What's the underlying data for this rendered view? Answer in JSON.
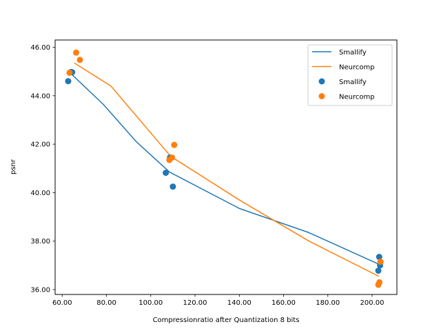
{
  "chart_data": {
    "type": "scatter",
    "xlabel": "Compressionratio after Quantization 8 bits",
    "ylabel": "psnr",
    "xlim": [
      56.8,
      211.2
    ],
    "ylim": [
      35.8,
      46.3
    ],
    "xticks": [
      60,
      80,
      100,
      120,
      140,
      160,
      180,
      200
    ],
    "xtick_labels": [
      "60.00",
      "80.00",
      "100.00",
      "120.00",
      "140.00",
      "160.00",
      "180.00",
      "200.00"
    ],
    "yticks": [
      36,
      38,
      40,
      42,
      44,
      46
    ],
    "ytick_labels": [
      "36.00",
      "38.00",
      "40.00",
      "42.00",
      "44.00",
      "46.00"
    ],
    "grid": false,
    "legend_position": "upper right",
    "colors": {
      "Smallify": "#1f77b4",
      "Neurcomp": "#ff7f0e"
    },
    "lines": [
      {
        "name": "Smallify",
        "color": "#1f77b4",
        "x": [
          63.5,
          78.5,
          93.5,
          108.5,
          140,
          171.5,
          203
        ],
        "y": [
          44.95,
          43.65,
          42.1,
          40.85,
          39.35,
          38.35,
          37.05
        ]
      },
      {
        "name": "Neurcomp",
        "color": "#ff7f0e",
        "x": [
          65.5,
          82,
          109,
          140,
          171.5,
          203
        ],
        "y": [
          45.35,
          44.4,
          41.5,
          39.7,
          38.0,
          36.55
        ]
      }
    ],
    "scatter": [
      {
        "name": "Smallify",
        "color": "#1f77b4",
        "x": [
          62.7,
          64.5,
          64.0,
          106.8,
          108.7,
          110.0,
          203.2,
          203.6,
          202.8
        ],
        "y": [
          44.6,
          44.97,
          44.98,
          40.82,
          41.45,
          40.25,
          37.35,
          37.0,
          36.78
        ]
      },
      {
        "name": "Neurcomp",
        "color": "#ff7f0e",
        "x": [
          63.3,
          66.3,
          68.0,
          108.4,
          109.6,
          110.6,
          203.8,
          203.3,
          202.8
        ],
        "y": [
          44.95,
          45.78,
          45.48,
          41.35,
          41.45,
          41.97,
          37.15,
          36.3,
          36.2
        ]
      }
    ],
    "legend": [
      {
        "label": "Smallify",
        "kind": "line",
        "color": "#1f77b4"
      },
      {
        "label": "Neurcomp",
        "kind": "line",
        "color": "#ff7f0e"
      },
      {
        "label": "Smallify",
        "kind": "marker",
        "color": "#1f77b4"
      },
      {
        "label": "Neurcomp",
        "kind": "marker",
        "color": "#ff7f0e"
      }
    ]
  }
}
